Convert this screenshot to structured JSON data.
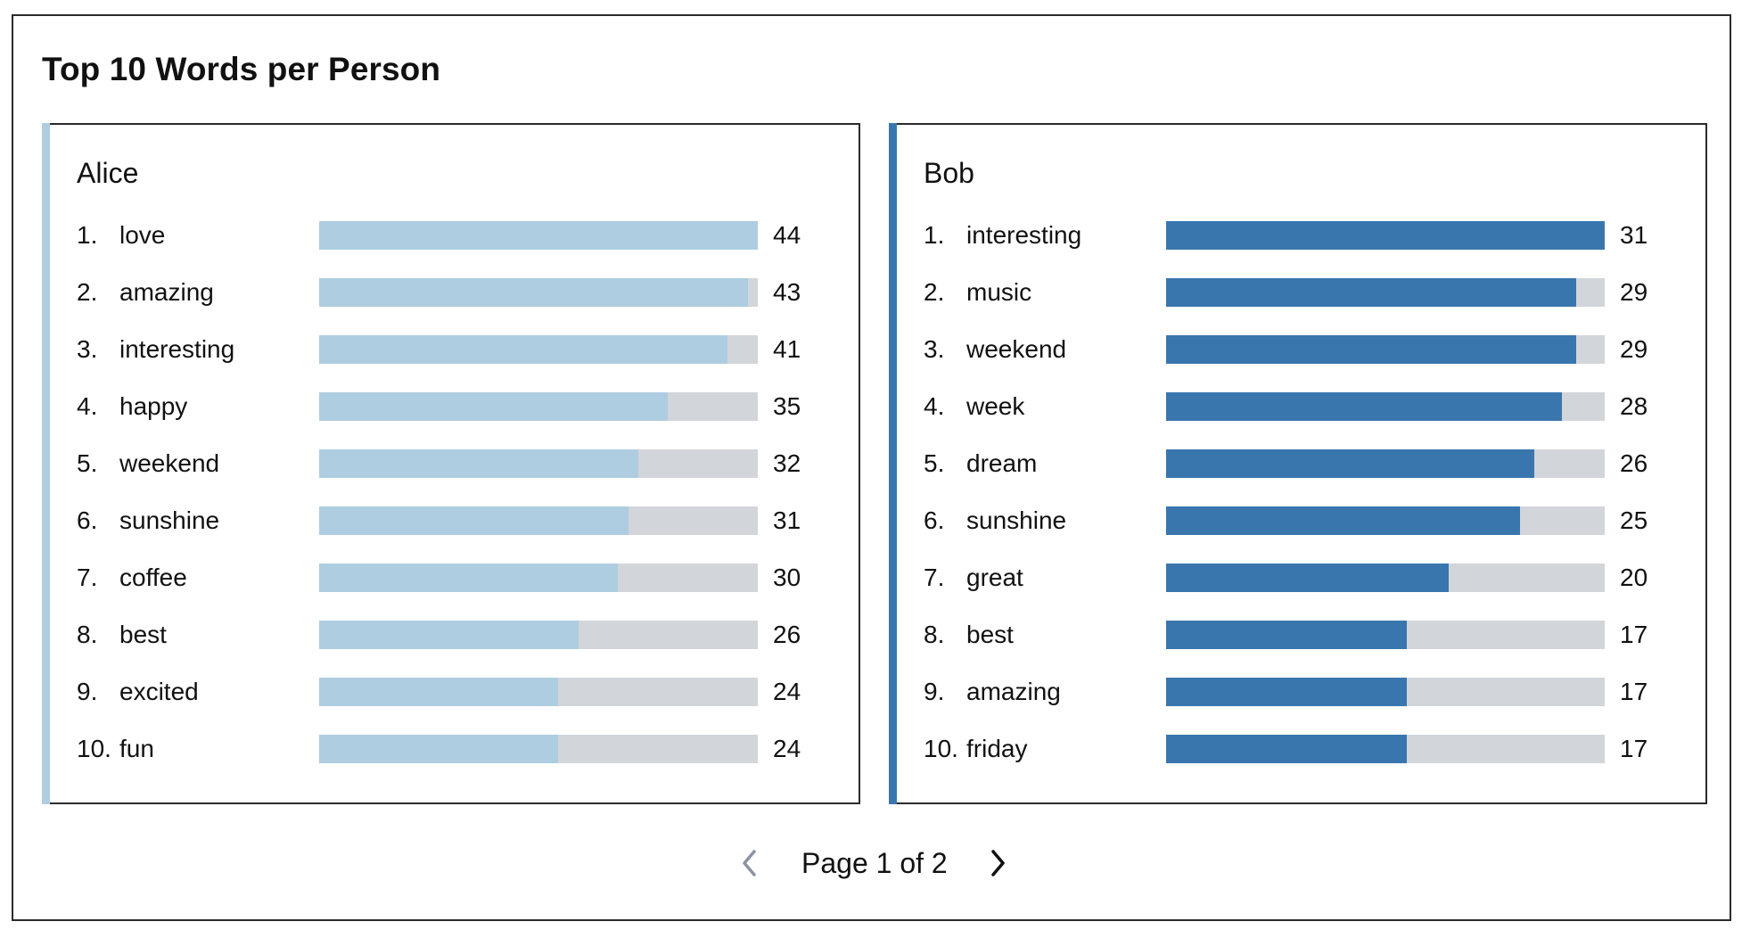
{
  "title": "Top 10 Words per Person",
  "pager": {
    "label": "Page 1 of 2",
    "prev_icon": "chevron-left-icon",
    "next_icon": "chevron-right-icon"
  },
  "colors": {
    "track": "#d2d5da",
    "alice": "#aecde1",
    "bob": "#3a76ae"
  },
  "chart_data": [
    {
      "type": "bar",
      "title": "Alice",
      "color": "#aecde1",
      "max": 44,
      "categories": [
        "love",
        "amazing",
        "interesting",
        "happy",
        "weekend",
        "sunshine",
        "coffee",
        "best",
        "excited",
        "fun"
      ],
      "values": [
        44,
        43,
        41,
        35,
        32,
        31,
        30,
        26,
        24,
        24
      ],
      "rows": [
        {
          "rank": "1.",
          "word": "love",
          "value": 44
        },
        {
          "rank": "2.",
          "word": "amazing",
          "value": 43
        },
        {
          "rank": "3.",
          "word": "interesting",
          "value": 41
        },
        {
          "rank": "4.",
          "word": "happy",
          "value": 35
        },
        {
          "rank": "5.",
          "word": "weekend",
          "value": 32
        },
        {
          "rank": "6.",
          "word": "sunshine",
          "value": 31
        },
        {
          "rank": "7.",
          "word": "coffee",
          "value": 30
        },
        {
          "rank": "8.",
          "word": "best",
          "value": 26
        },
        {
          "rank": "9.",
          "word": "excited",
          "value": 24
        },
        {
          "rank": "10.",
          "word": "fun",
          "value": 24
        }
      ]
    },
    {
      "type": "bar",
      "title": "Bob",
      "color": "#3a76ae",
      "max": 31,
      "categories": [
        "interesting",
        "music",
        "weekend",
        "week",
        "dream",
        "sunshine",
        "great",
        "best",
        "amazing",
        "friday"
      ],
      "values": [
        31,
        29,
        29,
        28,
        26,
        25,
        20,
        17,
        17,
        17
      ],
      "rows": [
        {
          "rank": "1.",
          "word": "interesting",
          "value": 31
        },
        {
          "rank": "2.",
          "word": "music",
          "value": 29
        },
        {
          "rank": "3.",
          "word": "weekend",
          "value": 29
        },
        {
          "rank": "4.",
          "word": "week",
          "value": 28
        },
        {
          "rank": "5.",
          "word": "dream",
          "value": 26
        },
        {
          "rank": "6.",
          "word": "sunshine",
          "value": 25
        },
        {
          "rank": "7.",
          "word": "great",
          "value": 20
        },
        {
          "rank": "8.",
          "word": "best",
          "value": 17
        },
        {
          "rank": "9.",
          "word": "amazing",
          "value": 17
        },
        {
          "rank": "10.",
          "word": "friday",
          "value": 17
        }
      ]
    }
  ]
}
